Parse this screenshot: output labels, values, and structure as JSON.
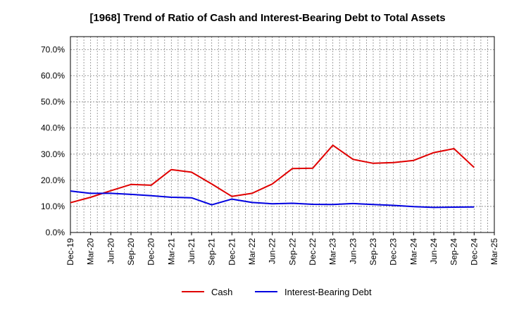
{
  "chart_data": {
    "type": "line",
    "title": "[1968]  Trend of Ratio of Cash and Interest-Bearing Debt to Total Assets",
    "xlabel": "",
    "ylabel": "",
    "x_tick_labels": [
      "Dec-19",
      "Mar-20",
      "Jun-20",
      "Sep-20",
      "Dec-20",
      "Mar-21",
      "Jun-21",
      "Sep-21",
      "Dec-21",
      "Mar-22",
      "Jun-22",
      "Sep-22",
      "Dec-22",
      "Mar-23",
      "Jun-23",
      "Sep-23",
      "Dec-23",
      "Mar-24",
      "Jun-24",
      "Sep-24",
      "Dec-24",
      "Mar-25"
    ],
    "y_tick_labels": [
      "0.0%",
      "10.0%",
      "20.0%",
      "30.0%",
      "40.0%",
      "50.0%",
      "60.0%",
      "70.0%"
    ],
    "ylim": [
      0,
      75
    ],
    "y_unit": "%",
    "grid": true,
    "legend_position": "bottom",
    "series": [
      {
        "name": "Cash",
        "color": "#e00000",
        "x": [
          "Dec-19",
          "Mar-20",
          "Jun-20",
          "Sep-20",
          "Dec-20",
          "Mar-21",
          "Jun-21",
          "Sep-21",
          "Dec-21",
          "Mar-22",
          "Jun-22",
          "Sep-22",
          "Dec-22",
          "Mar-23",
          "Jun-23",
          "Sep-23",
          "Dec-23",
          "Mar-24",
          "Jun-24",
          "Sep-24",
          "Dec-24"
        ],
        "values": [
          11.4,
          13.5,
          16.0,
          18.4,
          18.1,
          24.1,
          23.1,
          18.6,
          13.8,
          15.0,
          18.6,
          24.5,
          24.6,
          33.4,
          28.0,
          26.5,
          26.8,
          27.6,
          30.6,
          32.1,
          24.9
        ]
      },
      {
        "name": "Interest-Bearing Debt",
        "color": "#0000e0",
        "x": [
          "Dec-19",
          "Mar-20",
          "Jun-20",
          "Sep-20",
          "Dec-20",
          "Mar-21",
          "Jun-21",
          "Sep-21",
          "Dec-21",
          "Mar-22",
          "Jun-22",
          "Sep-22",
          "Dec-22",
          "Mar-23",
          "Jun-23",
          "Sep-23",
          "Dec-23",
          "Mar-24",
          "Jun-24",
          "Sep-24",
          "Dec-24"
        ],
        "values": [
          15.9,
          15.0,
          15.0,
          14.6,
          14.1,
          13.5,
          13.3,
          10.6,
          12.8,
          11.5,
          11.0,
          11.2,
          10.8,
          10.7,
          11.1,
          10.7,
          10.4,
          9.9,
          9.6,
          9.7,
          9.8
        ]
      }
    ]
  }
}
